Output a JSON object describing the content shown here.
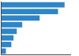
{
  "chart_data": {
    "type": "bar",
    "orientation": "horizontal",
    "categories": [
      null,
      null,
      null,
      null,
      null,
      null,
      null,
      null
    ],
    "values": [
      29.0,
      26.0,
      17.5,
      9.5,
      7.0,
      5.5,
      4.5,
      2.0
    ],
    "color": "#2e86c8",
    "xlim": [
      0,
      32
    ],
    "grid": false,
    "tick_labels": false
  }
}
